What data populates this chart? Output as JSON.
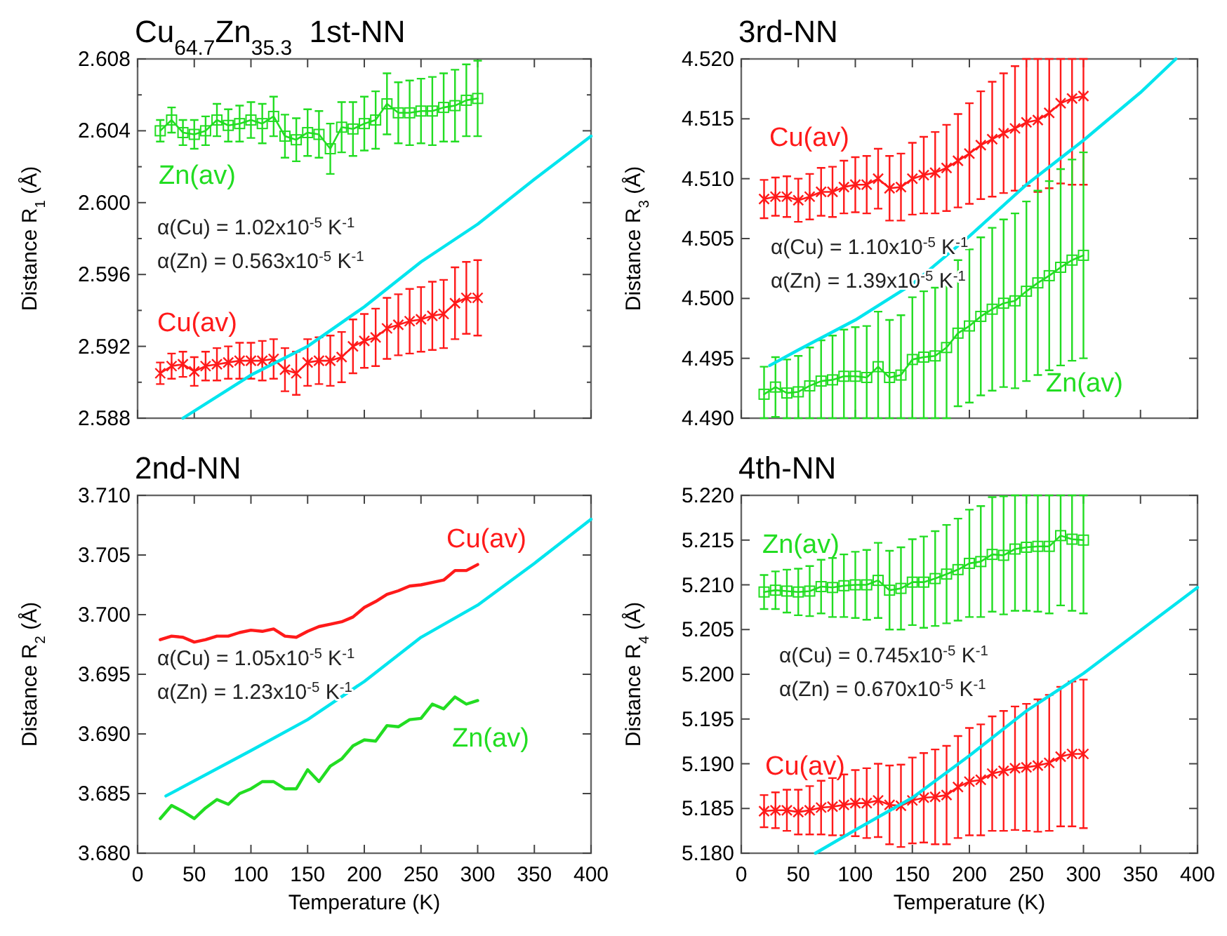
{
  "chart_data": [
    {
      "type": "line",
      "title": "Cu$_{64.7}$Zn$_{35.3}$  1st-NN",
      "ylabel": "Distance  R$_{1}$ (Å)",
      "xlim": [
        0,
        400
      ],
      "xticks": [
        0,
        50,
        100,
        150,
        200,
        250,
        300,
        350,
        400
      ],
      "ylim": [
        2.588,
        2.608
      ],
      "yticks": [
        2.588,
        {
          "value": 2.59,
          "label": null
        },
        2.592,
        {
          "value": 2.594,
          "label": null
        },
        2.596,
        {
          "value": 2.598,
          "label": null
        },
        {
          "value": 2.6,
          "label": "2.600"
        },
        {
          "value": 2.602,
          "label": null
        },
        2.604,
        {
          "value": 2.606,
          "label": null
        },
        2.608
      ],
      "tick_labels": "y",
      "x": [
        20,
        30,
        40,
        50,
        60,
        70,
        80,
        90,
        100,
        110,
        120,
        130,
        140,
        150,
        160,
        170,
        180,
        190,
        200,
        210,
        220,
        230,
        240,
        250,
        260,
        270,
        280,
        290,
        300
      ],
      "annotations": [
        "α(Cu) = 1.02x10$^{-5}$ K$^{-1}$",
        "α(Zn) = 0.563x10$^{-5}$ K$^{-1}$"
      ],
      "series": [
        {
          "name": "Zn(av)",
          "color": "#22dd22",
          "marker": "square",
          "values": [
            2.604,
            2.6046,
            2.6039,
            2.6038,
            2.604,
            2.6046,
            2.6043,
            2.6044,
            2.6046,
            2.6044,
            2.6048,
            2.6037,
            2.6035,
            2.6039,
            2.6038,
            2.603,
            2.6042,
            2.6041,
            2.6044,
            2.6046,
            2.6055,
            2.605,
            2.605,
            2.6051,
            2.6051,
            2.6053,
            2.6054,
            2.6057,
            2.6058
          ],
          "errors": [
            0.0006,
            0.0007,
            0.0007,
            0.0008,
            0.0008,
            0.0009,
            0.0009,
            0.001,
            0.001,
            0.0011,
            0.0011,
            0.0012,
            0.0012,
            0.0013,
            0.0013,
            0.0014,
            0.0014,
            0.0015,
            0.0015,
            0.0016,
            0.0017,
            0.0017,
            0.0018,
            0.0018,
            0.0019,
            0.0019,
            0.002,
            0.002,
            0.0021
          ]
        },
        {
          "name": "Cu(av)",
          "color": "#ff1a1a",
          "marker": "cross",
          "values": [
            2.5905,
            2.5909,
            2.591,
            2.5906,
            2.5909,
            2.591,
            2.5911,
            2.5912,
            2.5912,
            2.5912,
            2.5913,
            2.5907,
            2.5905,
            2.5911,
            2.5912,
            2.5912,
            2.5914,
            2.592,
            2.5923,
            2.5925,
            2.593,
            2.5932,
            2.5934,
            2.5935,
            2.5937,
            2.5938,
            2.5944,
            2.5947,
            2.5947
          ],
          "errors": [
            0.0006,
            0.0007,
            0.0007,
            0.0008,
            0.0008,
            0.0009,
            0.0009,
            0.001,
            0.001,
            0.0011,
            0.0011,
            0.0012,
            0.0012,
            0.0013,
            0.0013,
            0.0014,
            0.0014,
            0.0015,
            0.0015,
            0.0016,
            0.0017,
            0.0017,
            0.0018,
            0.0018,
            0.0019,
            0.0019,
            0.002,
            0.002,
            0.0021
          ]
        },
        {
          "color": "#00e5ee",
          "marker": "none",
          "x": [
            40,
            80,
            100,
            150,
            200,
            250,
            300,
            350,
            400
          ],
          "values": [
            2.588,
            2.5896,
            2.5904,
            2.592,
            2.5942,
            2.5967,
            2.5988,
            2.6013,
            2.6037
          ]
        }
      ]
    },
    {
      "type": "line",
      "title": "3rd-NN",
      "ylabel": "Distance  R$_{3}$ (Å)",
      "xlim": [
        0,
        400
      ],
      "xticks": [
        0,
        50,
        100,
        150,
        200,
        250,
        300,
        350,
        400
      ],
      "ylim": [
        4.49,
        4.52
      ],
      "yticks": [
        {
          "value": 4.49,
          "label": "4.490"
        },
        4.495,
        {
          "value": 4.5,
          "label": "4.500"
        },
        4.505,
        {
          "value": 4.51,
          "label": "4.510"
        },
        4.515,
        {
          "value": 4.52,
          "label": "4.520"
        }
      ],
      "tick_labels": "y",
      "x": [
        20,
        30,
        40,
        50,
        60,
        70,
        80,
        90,
        100,
        110,
        120,
        130,
        140,
        150,
        160,
        170,
        180,
        190,
        200,
        210,
        220,
        230,
        240,
        250,
        260,
        270,
        280,
        290,
        300
      ],
      "annotations": [
        "α(Cu) = 1.10x10$^{-5}$ K$^{-1}$",
        "α(Zn) = 1.39x10$^{-5}$ K$^{-1}$"
      ],
      "series": [
        {
          "name": "Cu(av)",
          "color": "#ff1a1a",
          "marker": "cross",
          "values": [
            4.5083,
            4.5085,
            4.5085,
            4.5082,
            4.5085,
            4.5089,
            4.5089,
            4.5093,
            4.5095,
            4.5095,
            4.51,
            4.5092,
            4.5093,
            4.51,
            4.5103,
            4.5105,
            4.5109,
            4.5115,
            4.5121,
            4.5128,
            4.5133,
            4.5138,
            4.5142,
            4.5147,
            4.5149,
            4.5155,
            4.5163,
            4.5167,
            4.5169
          ],
          "errors": [
            0.0016,
            0.0016,
            0.0017,
            0.0018,
            0.0019,
            0.002,
            0.0021,
            0.0022,
            0.0023,
            0.0024,
            0.0025,
            0.0027,
            0.0028,
            0.003,
            0.0032,
            0.0034,
            0.0036,
            0.0039,
            0.0042,
            0.0045,
            0.0048,
            0.005,
            0.0052,
            0.0053,
            [
              4.5089,
              4.52
            ],
            [
              4.5092,
              4.52
            ],
            [
              4.5096,
              4.52
            ],
            [
              4.5095,
              4.52
            ],
            [
              4.5095,
              4.52
            ]
          ]
        },
        {
          "name": "Zn(av)",
          "color": "#22dd22",
          "marker": "square",
          "values": [
            4.492,
            4.4926,
            4.4921,
            4.4922,
            4.4927,
            4.4931,
            4.4932,
            4.4935,
            4.4935,
            4.4934,
            4.4943,
            4.4934,
            4.4936,
            4.4949,
            4.4951,
            4.4952,
            4.4959,
            4.4971,
            4.4977,
            4.4985,
            4.4991,
            4.4996,
            4.4998,
            4.5006,
            4.5013,
            4.5019,
            4.5026,
            4.5032,
            4.5036
          ],
          "errors": [
            [
              4.49,
              4.4943
            ],
            0.0025,
            [
              4.49,
              4.4949
            ],
            [
              4.49,
              4.4952
            ],
            [
              4.49,
              4.4959
            ],
            [
              4.49,
              4.4965
            ],
            [
              4.49,
              4.4969
            ],
            [
              4.49,
              4.4974
            ],
            [
              4.49,
              4.4976
            ],
            [
              4.49,
              4.4977
            ],
            [
              4.49,
              4.4989
            ],
            [
              4.49,
              4.4982
            ],
            [
              4.49,
              4.4986
            ],
            [
              4.49,
              4.5001
            ],
            [
              4.49,
              4.5006
            ],
            [
              4.49,
              4.5009
            ],
            0.0059,
            0.0061,
            0.0064,
            0.0066,
            0.0068,
            0.007,
            0.0073,
            0.0075,
            0.0077,
            0.0079,
            0.0082,
            0.0084,
            0.0086
          ]
        },
        {
          "color": "#00e5ee",
          "marker": "none",
          "x": [
            25,
            50,
            100,
            150,
            200,
            250,
            300,
            350,
            381
          ],
          "values": [
            4.4944,
            4.4957,
            4.4982,
            4.5012,
            4.5052,
            4.5095,
            4.5132,
            4.5172,
            4.52
          ]
        }
      ]
    },
    {
      "type": "line",
      "title": "2nd-NN",
      "xlabel": "Temperature  (K)",
      "ylabel": "Distance  R$_{2}$ (Å)",
      "xlim": [
        0,
        400
      ],
      "xticks": [
        0,
        50,
        100,
        150,
        200,
        250,
        300,
        350,
        400
      ],
      "ylim": [
        3.68,
        3.71
      ],
      "yticks": [
        {
          "value": 3.68,
          "label": "3.680"
        },
        3.685,
        {
          "value": 3.69,
          "label": "3.690"
        },
        3.695,
        {
          "value": 3.7,
          "label": "3.700"
        },
        3.705,
        {
          "value": 3.71,
          "label": "3.710"
        }
      ],
      "x": [
        20,
        30,
        40,
        50,
        60,
        70,
        80,
        90,
        100,
        110,
        120,
        130,
        140,
        150,
        160,
        170,
        180,
        190,
        200,
        210,
        220,
        230,
        240,
        250,
        260,
        270,
        280,
        290,
        300
      ],
      "annotations": [
        "α(Cu) = 1.05x10$^{-5}$ K$^{-1}$",
        "α(Zn) = 1.23x10$^{-5}$ K$^{-1}$"
      ],
      "series": [
        {
          "name": "Cu(av)",
          "color": "#ff1a1a",
          "marker": "none",
          "values": [
            3.6979,
            3.6982,
            3.6981,
            3.6977,
            3.6979,
            3.6982,
            3.6982,
            3.6985,
            3.6987,
            3.6986,
            3.6988,
            3.6982,
            3.6981,
            3.6986,
            3.699,
            3.6992,
            3.6994,
            3.6998,
            3.7006,
            3.7011,
            3.7017,
            3.702,
            3.7024,
            3.7025,
            3.7027,
            3.7029,
            3.7037,
            3.7037,
            3.7042
          ]
        },
        {
          "name": "Zn(av)",
          "color": "#22dd22",
          "marker": "none",
          "values": [
            3.6829,
            3.684,
            3.6835,
            3.6829,
            3.6838,
            3.6845,
            3.6841,
            3.685,
            3.6854,
            3.686,
            3.686,
            3.6854,
            3.6854,
            3.687,
            3.686,
            3.6873,
            3.6879,
            3.689,
            3.6895,
            3.6894,
            3.6907,
            3.6906,
            3.6912,
            3.6913,
            3.6925,
            3.6921,
            3.6931,
            3.6925,
            3.6928
          ]
        },
        {
          "color": "#00e5ee",
          "marker": "none",
          "x": [
            25,
            100,
            150,
            200,
            250,
            300,
            350,
            400
          ],
          "values": [
            3.6848,
            3.6886,
            3.6912,
            3.6944,
            3.6981,
            3.7008,
            3.7043,
            3.708
          ]
        }
      ]
    },
    {
      "type": "line",
      "title": "4th-NN",
      "xlabel": "Temperature  (K)",
      "ylabel": "Distance  R$_{4}$ (Å)",
      "xlim": [
        0,
        400
      ],
      "xticks": [
        0,
        50,
        100,
        150,
        200,
        250,
        300,
        350,
        400
      ],
      "ylim": [
        5.18,
        5.22
      ],
      "yticks": [
        {
          "value": 5.18,
          "label": "5.180"
        },
        5.185,
        {
          "value": 5.19,
          "label": "5.190"
        },
        5.195,
        {
          "value": 5.2,
          "label": "5.200"
        },
        5.205,
        {
          "value": 5.21,
          "label": "5.210"
        },
        5.215,
        {
          "value": 5.22,
          "label": "5.220"
        }
      ],
      "x": [
        20,
        30,
        40,
        50,
        60,
        70,
        80,
        90,
        100,
        110,
        120,
        130,
        140,
        150,
        160,
        170,
        180,
        190,
        200,
        210,
        220,
        230,
        240,
        250,
        260,
        270,
        280,
        290,
        300
      ],
      "annotations": [
        "α(Cu) = 0.745x10$^{-5}$ K$^{-1}$",
        "α(Zn) = 0.670x10$^{-5}$ K$^{-1}$"
      ],
      "series": [
        {
          "name": "Zn(av)",
          "color": "#22dd22",
          "marker": "square",
          "values": [
            5.2092,
            5.2094,
            5.2093,
            5.2092,
            5.2093,
            5.2098,
            5.2097,
            5.2099,
            5.21,
            5.21,
            5.2105,
            5.2094,
            5.2096,
            5.2103,
            5.2103,
            5.2107,
            5.2112,
            5.2117,
            5.2124,
            5.2126,
            5.2134,
            5.2133,
            5.214,
            5.2142,
            5.2143,
            5.2143,
            5.2155,
            5.2151,
            5.215
          ],
          "errors": [
            0.0019,
            0.0021,
            0.0024,
            0.0026,
            0.0028,
            0.003,
            0.0033,
            0.0035,
            0.0037,
            0.0039,
            0.0042,
            0.0044,
            0.0046,
            0.0048,
            0.0051,
            0.0053,
            0.0055,
            0.0057,
            0.006,
            0.0062,
            0.0064,
            0.0066,
            [
              5.2071,
              5.22
            ],
            [
              5.2071,
              5.22
            ],
            [
              5.207,
              5.22
            ],
            [
              5.2068,
              5.22
            ],
            [
              5.2077,
              5.22
            ],
            [
              5.2071,
              5.22
            ],
            [
              5.2068,
              5.22
            ]
          ]
        },
        {
          "name": "Cu(av)",
          "color": "#ff1a1a",
          "marker": "cross",
          "values": [
            5.1847,
            5.1848,
            5.1848,
            5.1846,
            5.1848,
            5.1851,
            5.1852,
            5.1854,
            5.1856,
            5.1856,
            5.1859,
            5.1854,
            5.1853,
            5.1859,
            5.1862,
            5.1863,
            5.1865,
            5.1874,
            5.188,
            5.1882,
            5.1889,
            5.1892,
            5.1895,
            5.1896,
            5.1898,
            5.1901,
            5.1908,
            5.1911,
            5.1911
          ],
          "errors": [
            0.0018,
            0.002,
            0.0023,
            0.0025,
            0.0027,
            0.003,
            0.0032,
            0.0034,
            0.0037,
            0.0039,
            0.0041,
            0.0044,
            0.0046,
            0.0048,
            0.005,
            0.0053,
            0.0055,
            0.0057,
            0.006,
            0.0062,
            0.0064,
            0.0067,
            0.0069,
            0.0071,
            0.0074,
            0.0076,
            0.0078,
            0.0081,
            0.0083
          ]
        },
        {
          "color": "#00e5ee",
          "marker": "none",
          "x": [
            65,
            100,
            150,
            200,
            250,
            300,
            350,
            400
          ],
          "values": [
            5.18,
            5.1826,
            5.1862,
            5.1909,
            5.1959,
            5.2001,
            5.2049,
            5.2097
          ]
        }
      ]
    }
  ]
}
